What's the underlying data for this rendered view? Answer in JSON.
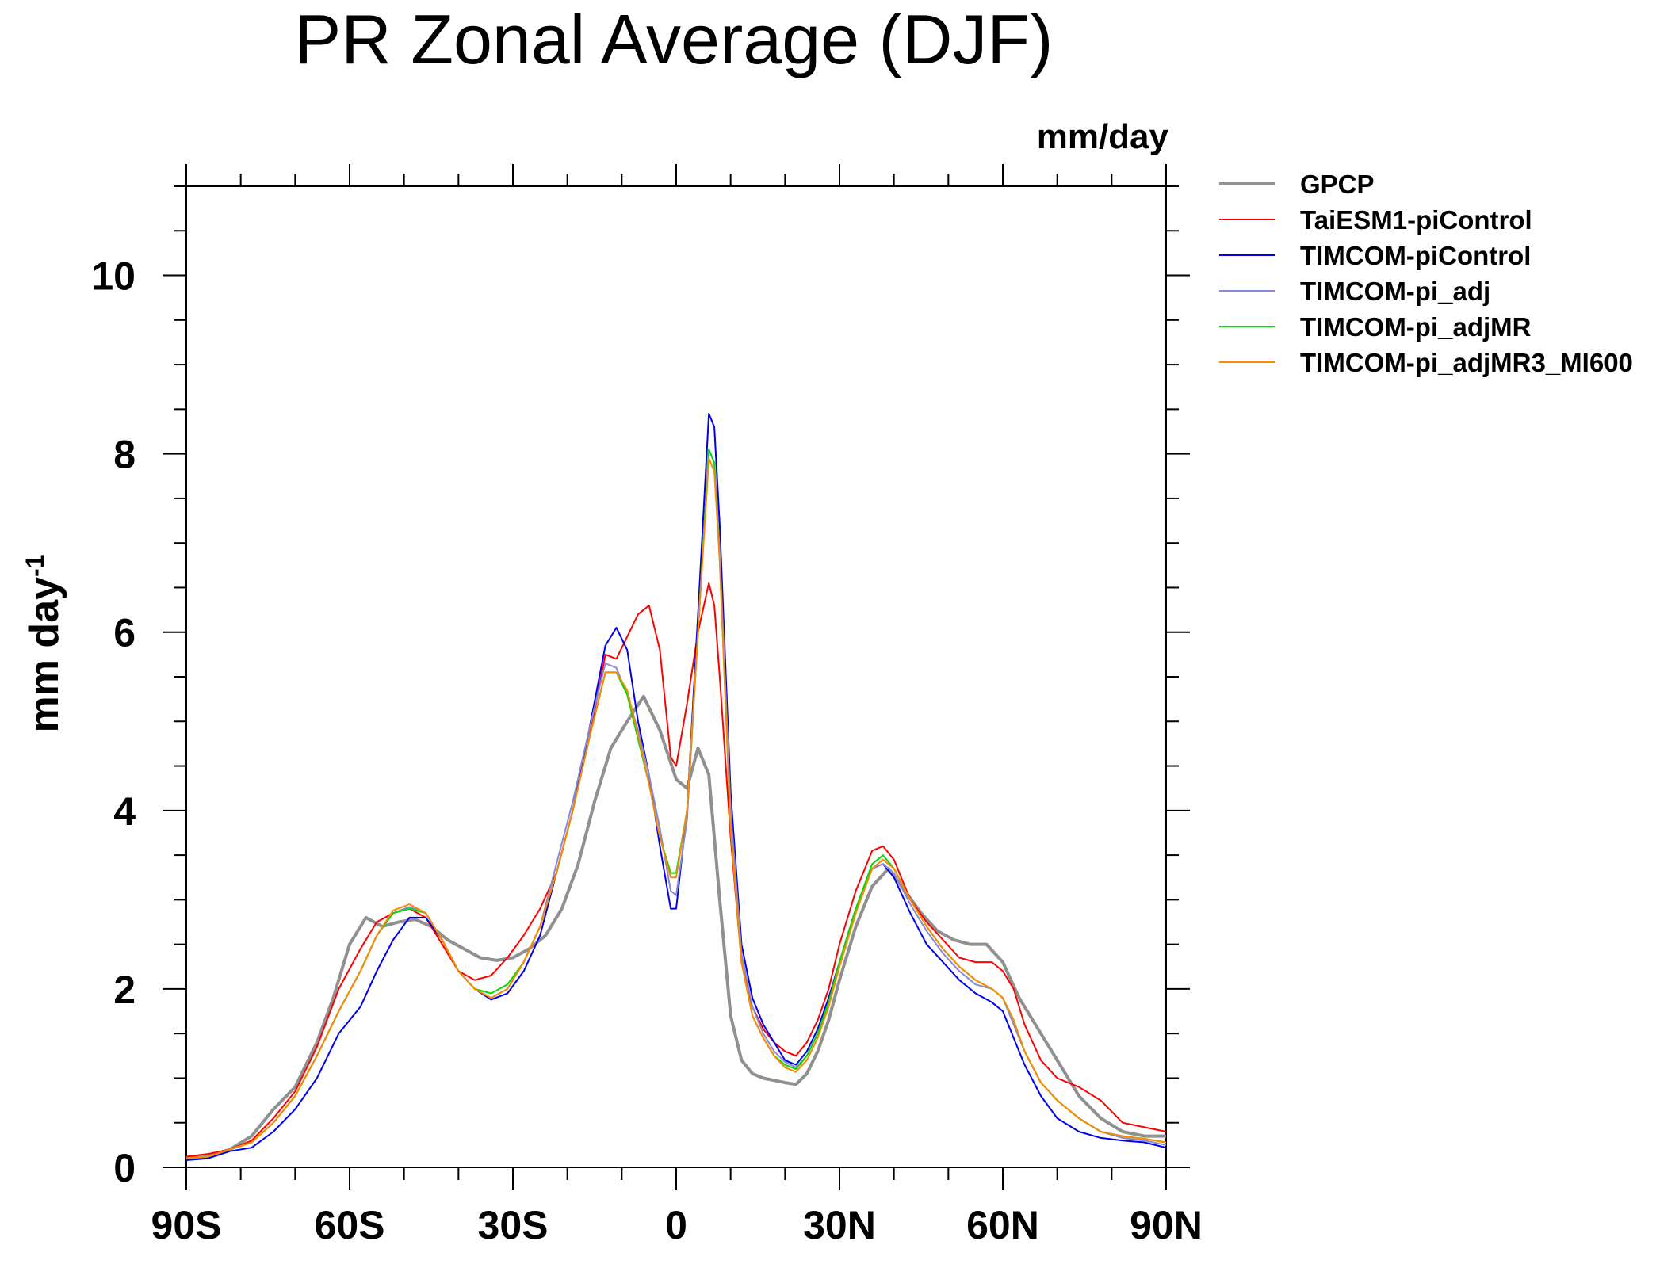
{
  "chart_data": {
    "type": "line",
    "title": "PR Zonal Average (DJF)",
    "units": "mm/day",
    "ylabel": "mm day",
    "ylabel_exponent": "-1",
    "xlabel": "",
    "xlim": [
      -90,
      90
    ],
    "ylim": [
      0,
      11
    ],
    "x_ticks": [
      -90,
      -60,
      -30,
      0,
      30,
      60,
      90
    ],
    "x_tick_labels": [
      "90S",
      "60S",
      "30S",
      "0",
      "30N",
      "60N",
      "90N"
    ],
    "y_ticks": [
      0,
      2,
      4,
      6,
      8,
      10
    ],
    "y_tick_labels": [
      "0",
      "2",
      "4",
      "6",
      "8",
      "10"
    ],
    "legend_position": "right",
    "grid": false,
    "series": [
      {
        "name": "GPCP",
        "color": "#909090",
        "thick": true,
        "x": [
          -90,
          -86,
          -82,
          -78,
          -74,
          -70,
          -66,
          -63,
          -60,
          -57,
          -54,
          -51,
          -48,
          -45,
          -42,
          -39,
          -36,
          -33,
          -30,
          -27,
          -24,
          -21,
          -18,
          -15,
          -12,
          -9,
          -6,
          -3,
          0,
          2,
          4,
          6,
          8,
          10,
          12,
          14,
          16,
          20,
          22,
          24,
          26,
          28,
          30,
          33,
          36,
          39,
          42,
          45,
          48,
          51,
          54,
          57,
          60,
          63,
          66,
          70,
          74,
          78,
          82,
          86,
          90
        ],
        "y": [
          0.1,
          0.12,
          0.2,
          0.35,
          0.65,
          0.9,
          1.4,
          1.9,
          2.5,
          2.8,
          2.7,
          2.75,
          2.78,
          2.7,
          2.55,
          2.45,
          2.35,
          2.32,
          2.35,
          2.45,
          2.6,
          2.9,
          3.4,
          4.1,
          4.7,
          5.0,
          5.28,
          4.9,
          4.35,
          4.25,
          4.7,
          4.4,
          3.0,
          1.7,
          1.2,
          1.05,
          1.0,
          0.95,
          0.93,
          1.05,
          1.3,
          1.65,
          2.1,
          2.7,
          3.15,
          3.35,
          3.1,
          2.85,
          2.65,
          2.55,
          2.5,
          2.5,
          2.3,
          1.9,
          1.6,
          1.2,
          0.8,
          0.55,
          0.4,
          0.35,
          0.35
        ]
      },
      {
        "name": "TaiESM1-piControl",
        "color": "#ff0000",
        "x": [
          -90,
          -86,
          -82,
          -78,
          -74,
          -70,
          -66,
          -62,
          -58,
          -55,
          -52,
          -49,
          -46,
          -43,
          -40,
          -37,
          -34,
          -31,
          -28,
          -25,
          -22,
          -19,
          -16,
          -13,
          -11,
          -9,
          -7,
          -5,
          -3,
          -1,
          0,
          2,
          4,
          6,
          7,
          8,
          10,
          12,
          14,
          16,
          18,
          20,
          22,
          24,
          26,
          28,
          30,
          33,
          36,
          38,
          40,
          43,
          46,
          49,
          52,
          55,
          58,
          60,
          62,
          64,
          67,
          70,
          74,
          78,
          82,
          86,
          90
        ],
        "y": [
          0.12,
          0.15,
          0.2,
          0.3,
          0.55,
          0.85,
          1.35,
          2.0,
          2.45,
          2.75,
          2.85,
          2.9,
          2.8,
          2.5,
          2.2,
          2.1,
          2.15,
          2.35,
          2.6,
          2.9,
          3.3,
          4.0,
          4.8,
          5.75,
          5.7,
          5.95,
          6.2,
          6.3,
          5.8,
          4.6,
          4.5,
          5.2,
          6.0,
          6.55,
          6.3,
          5.5,
          3.7,
          2.3,
          1.8,
          1.55,
          1.4,
          1.3,
          1.25,
          1.4,
          1.65,
          2.0,
          2.5,
          3.1,
          3.55,
          3.6,
          3.45,
          3.0,
          2.75,
          2.55,
          2.35,
          2.3,
          2.3,
          2.2,
          2.0,
          1.6,
          1.2,
          1.0,
          0.9,
          0.75,
          0.5,
          0.45,
          0.4
        ]
      },
      {
        "name": "TIMCOM-piControl",
        "color": "#0000ee",
        "x": [
          -90,
          -86,
          -82,
          -78,
          -74,
          -70,
          -66,
          -62,
          -58,
          -55,
          -52,
          -49,
          -46,
          -43,
          -40,
          -37,
          -34,
          -31,
          -28,
          -25,
          -22,
          -19,
          -16,
          -13,
          -11,
          -9,
          -7,
          -5,
          -3,
          -1,
          0,
          2,
          4,
          6,
          7,
          8,
          10,
          12,
          14,
          16,
          18,
          20,
          22,
          24,
          26,
          28,
          30,
          33,
          36,
          38,
          40,
          43,
          46,
          49,
          52,
          55,
          58,
          60,
          62,
          64,
          67,
          70,
          74,
          78,
          82,
          86,
          90
        ],
        "y": [
          0.08,
          0.1,
          0.18,
          0.22,
          0.4,
          0.65,
          1.0,
          1.5,
          1.8,
          2.2,
          2.55,
          2.8,
          2.8,
          2.55,
          2.2,
          2.0,
          1.88,
          1.95,
          2.2,
          2.6,
          3.3,
          4.0,
          4.9,
          5.85,
          6.05,
          5.8,
          5.0,
          4.4,
          3.6,
          2.9,
          2.9,
          4.0,
          6.2,
          8.45,
          8.3,
          7.2,
          4.2,
          2.5,
          1.9,
          1.6,
          1.4,
          1.2,
          1.15,
          1.3,
          1.55,
          1.9,
          2.3,
          2.9,
          3.35,
          3.4,
          3.25,
          2.85,
          2.5,
          2.3,
          2.1,
          1.95,
          1.85,
          1.75,
          1.45,
          1.15,
          0.8,
          0.55,
          0.4,
          0.33,
          0.3,
          0.28,
          0.22
        ]
      },
      {
        "name": "TIMCOM-pi_adj",
        "color": "#8888dd",
        "x": [
          -90,
          -86,
          -82,
          -78,
          -74,
          -70,
          -66,
          -62,
          -58,
          -55,
          -52,
          -49,
          -46,
          -43,
          -40,
          -37,
          -34,
          -31,
          -28,
          -25,
          -22,
          -19,
          -16,
          -13,
          -11,
          -9,
          -7,
          -5,
          -3,
          -1,
          0,
          2,
          4,
          6,
          7,
          8,
          10,
          12,
          14,
          16,
          18,
          20,
          22,
          24,
          26,
          28,
          30,
          33,
          36,
          38,
          40,
          43,
          46,
          49,
          52,
          55,
          58,
          60,
          62,
          64,
          67,
          70,
          74,
          78,
          82,
          86,
          90
        ],
        "y": [
          0.1,
          0.12,
          0.2,
          0.28,
          0.5,
          0.8,
          1.25,
          1.75,
          2.2,
          2.6,
          2.85,
          2.92,
          2.85,
          2.55,
          2.2,
          2.0,
          1.9,
          2.0,
          2.3,
          2.7,
          3.4,
          4.1,
          4.9,
          5.65,
          5.6,
          5.3,
          4.9,
          4.4,
          3.8,
          3.1,
          3.05,
          3.9,
          6.0,
          8.05,
          7.9,
          6.9,
          4.0,
          2.4,
          1.8,
          1.5,
          1.3,
          1.18,
          1.12,
          1.25,
          1.5,
          1.85,
          2.3,
          2.9,
          3.35,
          3.4,
          3.3,
          2.95,
          2.65,
          2.4,
          2.2,
          2.05,
          2.0,
          1.9,
          1.6,
          1.3,
          0.95,
          0.75,
          0.55,
          0.4,
          0.33,
          0.3,
          0.25
        ]
      },
      {
        "name": "TIMCOM-pi_adjMR",
        "color": "#00dd00",
        "x": [
          -90,
          -86,
          -82,
          -78,
          -74,
          -70,
          -66,
          -62,
          -58,
          -55,
          -52,
          -49,
          -46,
          -43,
          -40,
          -37,
          -34,
          -31,
          -28,
          -25,
          -22,
          -19,
          -16,
          -13,
          -11,
          -9,
          -7,
          -5,
          -3,
          -1,
          0,
          2,
          4,
          6,
          7,
          8,
          10,
          12,
          14,
          16,
          18,
          20,
          22,
          24,
          26,
          28,
          30,
          33,
          36,
          38,
          40,
          43,
          46,
          49,
          52,
          55,
          58,
          60,
          62,
          64,
          67,
          70,
          74,
          78,
          82,
          86,
          90
        ],
        "y": [
          0.1,
          0.12,
          0.2,
          0.28,
          0.5,
          0.8,
          1.25,
          1.75,
          2.2,
          2.6,
          2.85,
          2.9,
          2.85,
          2.55,
          2.2,
          2.0,
          1.95,
          2.05,
          2.3,
          2.7,
          3.3,
          4.0,
          4.8,
          5.55,
          5.55,
          5.3,
          4.8,
          4.3,
          3.7,
          3.3,
          3.3,
          4.0,
          6.0,
          8.05,
          7.9,
          6.8,
          3.8,
          2.3,
          1.7,
          1.45,
          1.25,
          1.15,
          1.1,
          1.25,
          1.5,
          1.85,
          2.3,
          2.9,
          3.4,
          3.5,
          3.35,
          3.0,
          2.7,
          2.45,
          2.25,
          2.1,
          2.0,
          1.9,
          1.65,
          1.3,
          0.95,
          0.75,
          0.55,
          0.4,
          0.35,
          0.32,
          0.28
        ]
      },
      {
        "name": "TIMCOM-pi_adjMR3_MI600",
        "color": "#ff8800",
        "x": [
          -90,
          -86,
          -82,
          -78,
          -74,
          -70,
          -66,
          -62,
          -58,
          -55,
          -52,
          -49,
          -46,
          -43,
          -40,
          -37,
          -34,
          -31,
          -28,
          -25,
          -22,
          -19,
          -16,
          -13,
          -11,
          -9,
          -7,
          -5,
          -3,
          -1,
          0,
          2,
          4,
          6,
          7,
          8,
          10,
          12,
          14,
          16,
          18,
          20,
          22,
          24,
          26,
          28,
          30,
          33,
          36,
          38,
          40,
          43,
          46,
          49,
          52,
          55,
          58,
          60,
          62,
          64,
          67,
          70,
          74,
          78,
          82,
          86,
          90
        ],
        "y": [
          0.1,
          0.12,
          0.2,
          0.28,
          0.5,
          0.8,
          1.25,
          1.75,
          2.2,
          2.6,
          2.88,
          2.95,
          2.85,
          2.55,
          2.2,
          2.0,
          1.9,
          2.0,
          2.3,
          2.7,
          3.3,
          4.0,
          4.8,
          5.55,
          5.55,
          5.35,
          4.85,
          4.3,
          3.7,
          3.25,
          3.25,
          4.0,
          6.0,
          7.95,
          7.8,
          6.8,
          3.8,
          2.3,
          1.7,
          1.45,
          1.25,
          1.12,
          1.07,
          1.2,
          1.45,
          1.8,
          2.25,
          2.85,
          3.35,
          3.45,
          3.35,
          3.0,
          2.7,
          2.45,
          2.25,
          2.1,
          2.0,
          1.9,
          1.65,
          1.3,
          0.95,
          0.75,
          0.55,
          0.4,
          0.35,
          0.32,
          0.28
        ]
      }
    ]
  }
}
